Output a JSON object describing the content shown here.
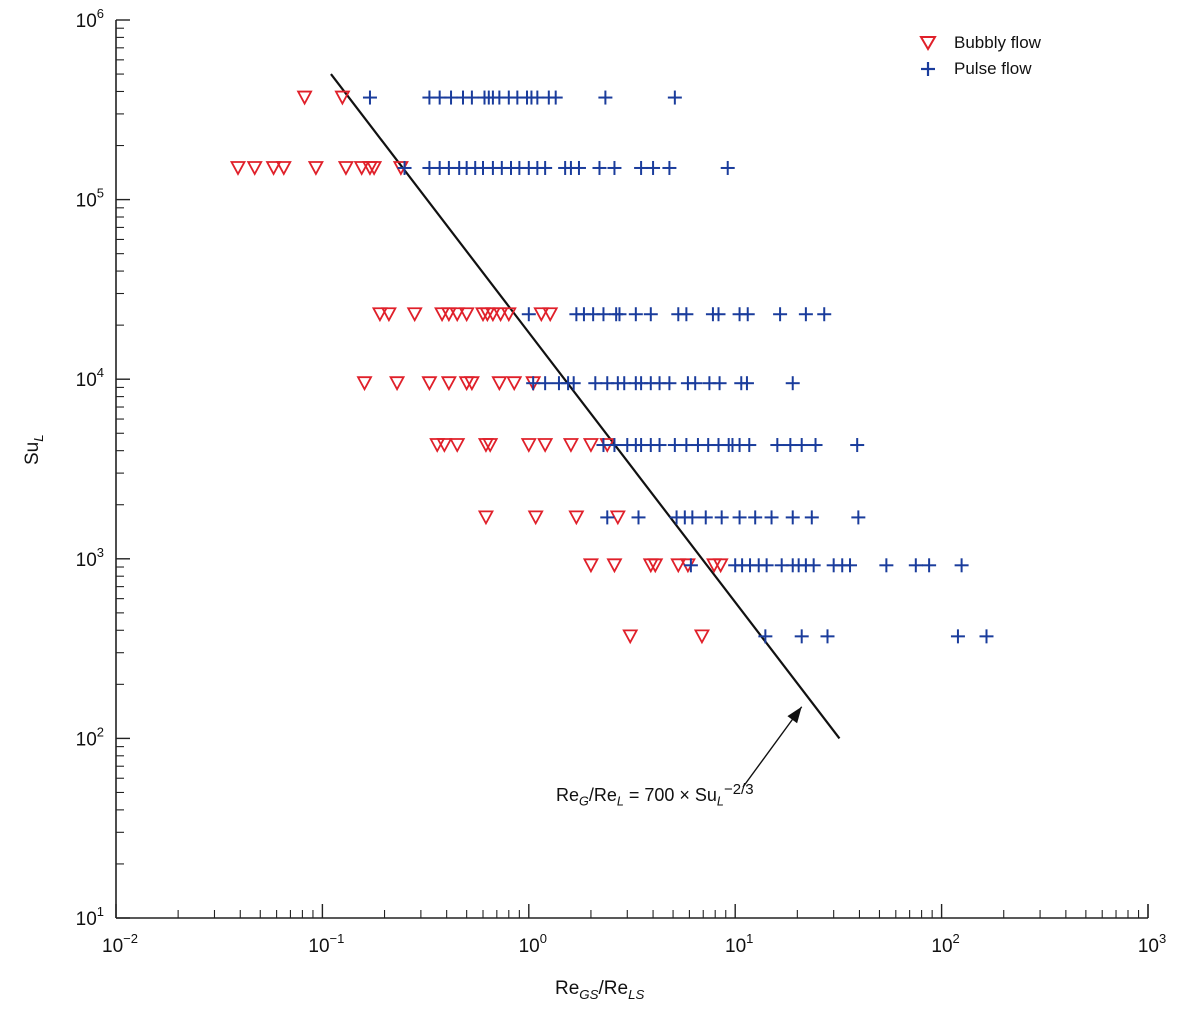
{
  "chart_data": {
    "type": "scatter",
    "title": "",
    "xlabel_parts": [
      "Re",
      "GS",
      "/Re",
      "LS"
    ],
    "ylabel_parts": [
      "Su",
      "L"
    ],
    "x_scale": "log",
    "y_scale": "log",
    "xlim": [
      0.01,
      1000
    ],
    "ylim": [
      10,
      1000000
    ],
    "x_tick_labels": [
      {
        "base": "10",
        "exp": "−2"
      },
      {
        "base": "10",
        "exp": "−1"
      },
      {
        "base": "10",
        "exp": "0"
      },
      {
        "base": "10",
        "exp": "1"
      },
      {
        "base": "10",
        "exp": "2"
      },
      {
        "base": "10",
        "exp": "3"
      }
    ],
    "y_tick_labels": [
      {
        "base": "10",
        "exp": "1"
      },
      {
        "base": "10",
        "exp": "2"
      },
      {
        "base": "10",
        "exp": "3"
      },
      {
        "base": "10",
        "exp": "4"
      },
      {
        "base": "10",
        "exp": "5"
      },
      {
        "base": "10",
        "exp": "6"
      }
    ],
    "grid": false,
    "legend_position": "top-right",
    "series": [
      {
        "name": "Bubbly flow",
        "marker": "triangle-down",
        "color": "#e0202a",
        "points": [
          [
            0.082,
            370000
          ],
          [
            0.125,
            370000
          ],
          [
            0.039,
            150000
          ],
          [
            0.047,
            150000
          ],
          [
            0.058,
            150000
          ],
          [
            0.065,
            150000
          ],
          [
            0.093,
            150000
          ],
          [
            0.13,
            150000
          ],
          [
            0.155,
            150000
          ],
          [
            0.17,
            150000
          ],
          [
            0.178,
            150000
          ],
          [
            0.24,
            150000
          ],
          [
            0.19,
            23000
          ],
          [
            0.21,
            23000
          ],
          [
            0.28,
            23000
          ],
          [
            0.38,
            23000
          ],
          [
            0.41,
            23000
          ],
          [
            0.45,
            23000
          ],
          [
            0.5,
            23000
          ],
          [
            0.6,
            23000
          ],
          [
            0.63,
            23000
          ],
          [
            0.67,
            23000
          ],
          [
            0.73,
            23000
          ],
          [
            0.8,
            23000
          ],
          [
            1.15,
            23000
          ],
          [
            1.27,
            23000
          ],
          [
            0.16,
            9500
          ],
          [
            0.23,
            9500
          ],
          [
            0.33,
            9500
          ],
          [
            0.41,
            9500
          ],
          [
            0.5,
            9500
          ],
          [
            0.53,
            9500
          ],
          [
            0.72,
            9500
          ],
          [
            0.85,
            9500
          ],
          [
            1.05,
            9500
          ],
          [
            0.36,
            4300
          ],
          [
            0.39,
            4300
          ],
          [
            0.45,
            4300
          ],
          [
            0.62,
            4300
          ],
          [
            0.65,
            4300
          ],
          [
            1.0,
            4300
          ],
          [
            1.2,
            4300
          ],
          [
            1.6,
            4300
          ],
          [
            2.0,
            4300
          ],
          [
            2.4,
            4300
          ],
          [
            0.62,
            1700
          ],
          [
            1.08,
            1700
          ],
          [
            1.7,
            1700
          ],
          [
            2.7,
            1700
          ],
          [
            2.0,
            920
          ],
          [
            2.6,
            920
          ],
          [
            3.9,
            920
          ],
          [
            4.1,
            920
          ],
          [
            5.3,
            920
          ],
          [
            5.9,
            920
          ],
          [
            7.9,
            920
          ],
          [
            8.5,
            920
          ],
          [
            3.1,
            370
          ],
          [
            6.9,
            370
          ]
        ]
      },
      {
        "name": "Pulse flow",
        "marker": "plus",
        "color": "#1a3c9c",
        "points": [
          [
            0.17,
            370000
          ],
          [
            0.33,
            370000
          ],
          [
            0.37,
            370000
          ],
          [
            0.42,
            370000
          ],
          [
            0.48,
            370000
          ],
          [
            0.53,
            370000
          ],
          [
            0.61,
            370000
          ],
          [
            0.64,
            370000
          ],
          [
            0.67,
            370000
          ],
          [
            0.72,
            370000
          ],
          [
            0.8,
            370000
          ],
          [
            0.88,
            370000
          ],
          [
            0.98,
            370000
          ],
          [
            1.03,
            370000
          ],
          [
            1.1,
            370000
          ],
          [
            1.25,
            370000
          ],
          [
            1.35,
            370000
          ],
          [
            2.35,
            370000
          ],
          [
            5.1,
            370000
          ],
          [
            0.25,
            150000
          ],
          [
            0.33,
            150000
          ],
          [
            0.37,
            150000
          ],
          [
            0.41,
            150000
          ],
          [
            0.46,
            150000
          ],
          [
            0.5,
            150000
          ],
          [
            0.55,
            150000
          ],
          [
            0.6,
            150000
          ],
          [
            0.67,
            150000
          ],
          [
            0.74,
            150000
          ],
          [
            0.82,
            150000
          ],
          [
            0.9,
            150000
          ],
          [
            1.0,
            150000
          ],
          [
            1.1,
            150000
          ],
          [
            1.2,
            150000
          ],
          [
            1.5,
            150000
          ],
          [
            1.6,
            150000
          ],
          [
            1.75,
            150000
          ],
          [
            2.2,
            150000
          ],
          [
            2.6,
            150000
          ],
          [
            3.5,
            150000
          ],
          [
            4.0,
            150000
          ],
          [
            4.8,
            150000
          ],
          [
            9.2,
            150000
          ],
          [
            1.0,
            23000
          ],
          [
            1.7,
            23000
          ],
          [
            1.85,
            23000
          ],
          [
            2.05,
            23000
          ],
          [
            2.3,
            23000
          ],
          [
            2.65,
            23000
          ],
          [
            2.75,
            23000
          ],
          [
            3.3,
            23000
          ],
          [
            3.9,
            23000
          ],
          [
            5.3,
            23000
          ],
          [
            5.8,
            23000
          ],
          [
            7.8,
            23000
          ],
          [
            8.3,
            23000
          ],
          [
            10.5,
            23000
          ],
          [
            11.5,
            23000
          ],
          [
            16.5,
            23000
          ],
          [
            22,
            23000
          ],
          [
            27,
            23000
          ],
          [
            1.05,
            9500
          ],
          [
            1.2,
            9500
          ],
          [
            1.4,
            9500
          ],
          [
            1.55,
            9500
          ],
          [
            1.65,
            9500
          ],
          [
            2.1,
            9500
          ],
          [
            2.4,
            9500
          ],
          [
            2.7,
            9500
          ],
          [
            2.9,
            9500
          ],
          [
            3.3,
            9500
          ],
          [
            3.5,
            9500
          ],
          [
            3.9,
            9500
          ],
          [
            4.3,
            9500
          ],
          [
            4.8,
            9500
          ],
          [
            5.9,
            9500
          ],
          [
            6.4,
            9500
          ],
          [
            7.5,
            9500
          ],
          [
            8.4,
            9500
          ],
          [
            10.7,
            9500
          ],
          [
            11.4,
            9500
          ],
          [
            19,
            9500
          ],
          [
            2.3,
            4300
          ],
          [
            2.6,
            4300
          ],
          [
            3.0,
            4300
          ],
          [
            3.3,
            4300
          ],
          [
            3.5,
            4300
          ],
          [
            3.9,
            4300
          ],
          [
            4.3,
            4300
          ],
          [
            5.1,
            4300
          ],
          [
            5.8,
            4300
          ],
          [
            6.6,
            4300
          ],
          [
            7.4,
            4300
          ],
          [
            8.3,
            4300
          ],
          [
            9.3,
            4300
          ],
          [
            9.7,
            4300
          ],
          [
            10.5,
            4300
          ],
          [
            11.7,
            4300
          ],
          [
            16,
            4300
          ],
          [
            18.5,
            4300
          ],
          [
            21,
            4300
          ],
          [
            24.5,
            4300
          ],
          [
            39,
            4300
          ],
          [
            2.4,
            1700
          ],
          [
            3.4,
            1700
          ],
          [
            5.2,
            1700
          ],
          [
            5.7,
            1700
          ],
          [
            6.2,
            1700
          ],
          [
            7.2,
            1700
          ],
          [
            8.6,
            1700
          ],
          [
            10.5,
            1700
          ],
          [
            12.5,
            1700
          ],
          [
            15,
            1700
          ],
          [
            19,
            1700
          ],
          [
            23.5,
            1700
          ],
          [
            39.5,
            1700
          ],
          [
            6.1,
            920
          ],
          [
            10.0,
            920
          ],
          [
            10.8,
            920
          ],
          [
            11.8,
            920
          ],
          [
            13.0,
            920
          ],
          [
            14.2,
            920
          ],
          [
            16.8,
            920
          ],
          [
            19,
            920
          ],
          [
            20.3,
            920
          ],
          [
            22,
            920
          ],
          [
            24,
            920
          ],
          [
            30,
            920
          ],
          [
            33,
            920
          ],
          [
            36,
            920
          ],
          [
            54,
            920
          ],
          [
            75,
            920
          ],
          [
            87,
            920
          ],
          [
            125,
            920
          ],
          [
            14,
            370
          ],
          [
            21,
            370
          ],
          [
            28,
            370
          ],
          [
            120,
            370
          ],
          [
            165,
            370
          ]
        ]
      }
    ],
    "fit_line": {
      "from": [
        0.11,
        500000
      ],
      "to": [
        32,
        100
      ]
    },
    "annotation": {
      "parts": [
        "Re",
        "G",
        "/Re",
        "L",
        " = 700 × Su",
        "L",
        "−2/3"
      ],
      "arrow_target": [
        21,
        150
      ]
    }
  }
}
